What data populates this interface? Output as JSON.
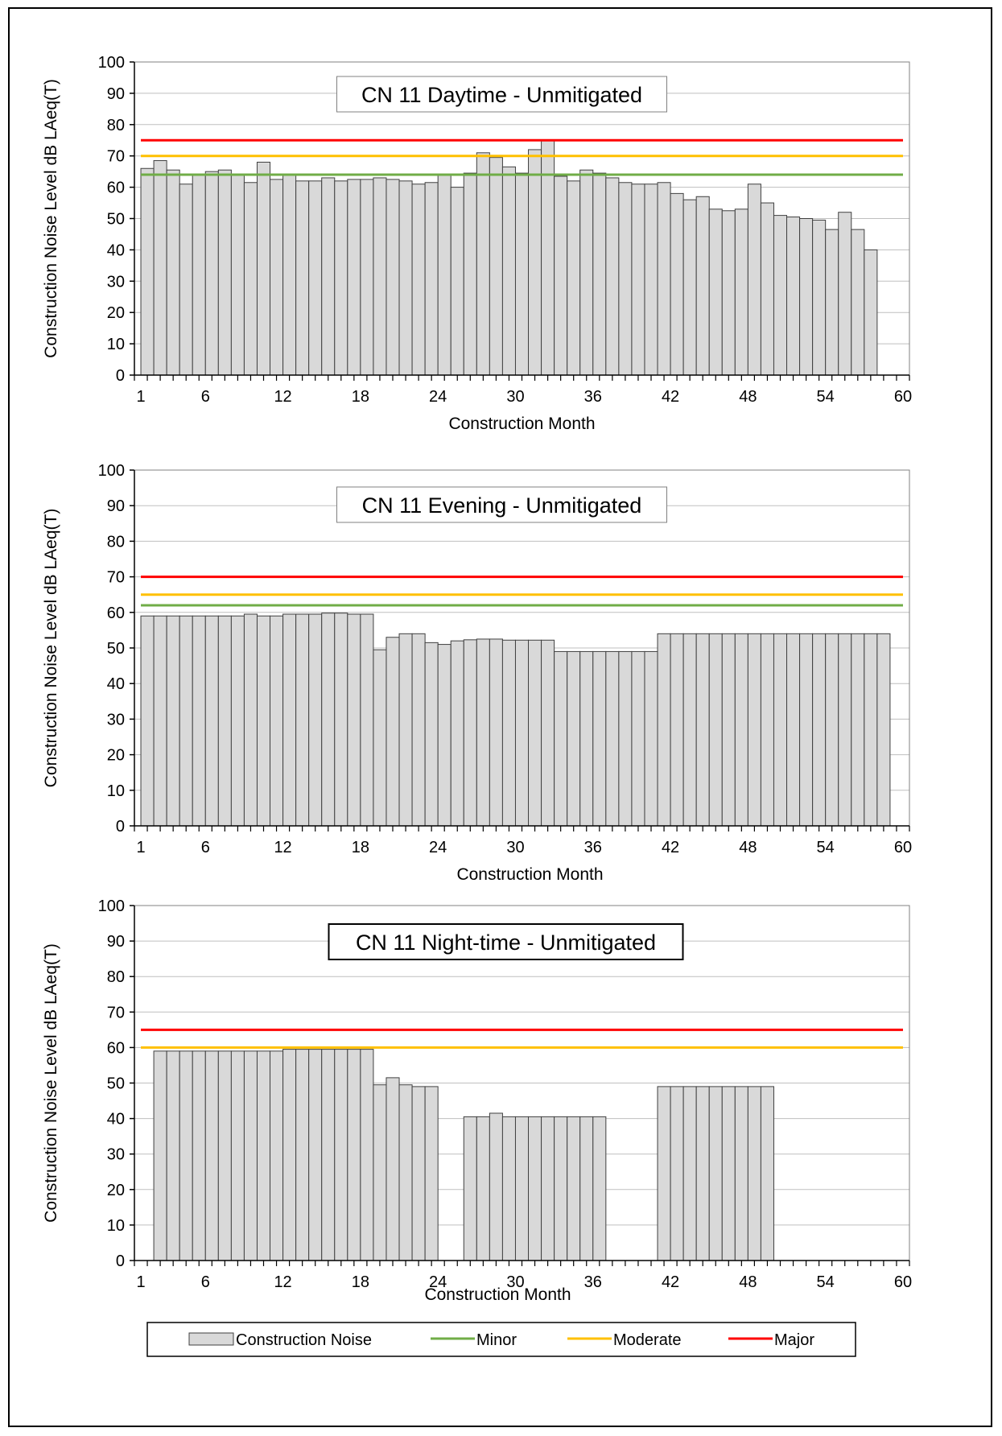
{
  "colors": {
    "bar_fill": "#d9d9d9",
    "bar_stroke": "#404040",
    "grid": "#bfbfbf",
    "minor": "#70ad47",
    "moderate": "#ffc000",
    "major": "#ff0000"
  },
  "legend": {
    "placement": "bottom",
    "items": [
      {
        "label": "Construction Noise",
        "kind": "bar"
      },
      {
        "label": "Minor",
        "kind": "line",
        "color": "#70ad47"
      },
      {
        "label": "Moderate",
        "kind": "line",
        "color": "#ffc000"
      },
      {
        "label": "Major",
        "kind": "line",
        "color": "#ff0000"
      }
    ]
  },
  "chart_data": [
    {
      "type": "bar",
      "title": "CN 11 Daytime - Unmitigated",
      "xlabel": "Construction Month",
      "ylabel": "Construction Noise Level dB LAeq(T)",
      "ylim": [
        0,
        100
      ],
      "yticks": [
        0,
        10,
        20,
        30,
        40,
        50,
        60,
        70,
        80,
        90,
        100
      ],
      "xlim": [
        1,
        60
      ],
      "xticks": [
        1,
        6,
        12,
        18,
        24,
        30,
        36,
        42,
        48,
        54,
        60
      ],
      "grid": true,
      "series": [
        {
          "name": "Construction Noise",
          "x": [
            1,
            2,
            3,
            4,
            5,
            6,
            7,
            8,
            9,
            10,
            11,
            12,
            13,
            14,
            15,
            16,
            17,
            18,
            19,
            20,
            21,
            22,
            23,
            24,
            25,
            26,
            27,
            28,
            29,
            30,
            31,
            32,
            33,
            34,
            35,
            36,
            37,
            38,
            39,
            40,
            41,
            42,
            43,
            44,
            45,
            46,
            47,
            48,
            49,
            50,
            51,
            52,
            53,
            54,
            55,
            56,
            57
          ],
          "values": [
            66,
            68.5,
            65.5,
            61,
            64,
            65,
            65.5,
            64,
            61.5,
            68,
            62.5,
            64,
            62,
            62,
            63,
            62,
            62.5,
            62.5,
            63,
            62.5,
            62,
            61,
            61.5,
            64,
            60,
            64.5,
            71,
            69.5,
            66.5,
            64.5,
            72,
            75,
            63.5,
            62,
            65.5,
            64.5,
            63,
            61.5,
            61,
            61,
            61.5,
            58,
            56,
            57,
            53,
            52.5,
            53,
            61,
            55,
            51,
            50.5,
            50,
            49.5,
            46.5,
            52,
            46.5,
            40
          ]
        }
      ],
      "thresholds": [
        {
          "name": "Minor",
          "value": 64
        },
        {
          "name": "Moderate",
          "value": 70
        },
        {
          "name": "Major",
          "value": 75
        }
      ]
    },
    {
      "type": "bar",
      "title": "CN 11 Evening - Unmitigated",
      "xlabel": "Construction Month",
      "ylabel": "Construction Noise Level dB LAeq(T)",
      "ylim": [
        0,
        100
      ],
      "yticks": [
        0,
        10,
        20,
        30,
        40,
        50,
        60,
        70,
        80,
        90,
        100
      ],
      "xlim": [
        1,
        60
      ],
      "xticks": [
        1,
        6,
        12,
        18,
        24,
        30,
        36,
        42,
        48,
        54,
        60
      ],
      "grid": true,
      "series": [
        {
          "name": "Construction Noise",
          "x": [
            1,
            2,
            3,
            4,
            5,
            6,
            7,
            8,
            9,
            10,
            11,
            12,
            13,
            14,
            15,
            16,
            17,
            18,
            19,
            20,
            21,
            22,
            23,
            24,
            25,
            26,
            27,
            28,
            29,
            30,
            31,
            32,
            33,
            34,
            35,
            36,
            37,
            38,
            39,
            40,
            41,
            42,
            43,
            44,
            45,
            46,
            47,
            48,
            49,
            50,
            51,
            52,
            53,
            54,
            55,
            56,
            57,
            58
          ],
          "values": [
            59,
            59,
            59,
            59,
            59,
            59,
            59,
            59,
            59.5,
            59,
            59,
            59.5,
            59.5,
            59.5,
            59.8,
            59.8,
            59.5,
            59.5,
            49.5,
            53,
            54,
            54,
            51.5,
            51,
            52,
            52.3,
            52.5,
            52.5,
            52.2,
            52.2,
            52.2,
            52.2,
            49,
            49,
            49,
            49,
            49,
            49,
            49,
            49,
            54,
            54,
            54,
            54,
            54,
            54,
            54,
            54,
            54,
            54,
            54,
            54,
            54,
            54,
            54,
            54,
            54,
            54
          ]
        }
      ],
      "thresholds": [
        {
          "name": "Minor",
          "value": 62
        },
        {
          "name": "Moderate",
          "value": 65
        },
        {
          "name": "Major",
          "value": 70
        }
      ]
    },
    {
      "type": "bar",
      "title": "CN 11 Night-time - Unmitigated",
      "xlabel": "Construction Month",
      "ylabel": "Construction Noise Level dB LAeq(T)",
      "ylim": [
        0,
        100
      ],
      "yticks": [
        0,
        10,
        20,
        30,
        40,
        50,
        60,
        70,
        80,
        90,
        100
      ],
      "xlim": [
        1,
        60
      ],
      "xticks": [
        1,
        6,
        12,
        18,
        24,
        30,
        36,
        42,
        48,
        54,
        60
      ],
      "grid": true,
      "series": [
        {
          "name": "Construction Noise",
          "x": [
            2,
            3,
            4,
            5,
            6,
            7,
            8,
            9,
            10,
            11,
            12,
            13,
            14,
            15,
            16,
            17,
            18,
            19,
            20,
            21,
            22,
            23,
            26,
            27,
            28,
            29,
            30,
            31,
            32,
            33,
            34,
            35,
            36,
            41,
            42,
            43,
            44,
            45,
            46,
            47,
            48,
            49
          ],
          "values": [
            59,
            59,
            59,
            59,
            59,
            59,
            59,
            59,
            59,
            59,
            59.5,
            59.5,
            59.5,
            59.5,
            59.5,
            59.5,
            59.5,
            49.5,
            51.5,
            49.5,
            49,
            49,
            40.5,
            40.5,
            41.5,
            40.5,
            40.5,
            40.5,
            40.5,
            40.5,
            40.5,
            40.5,
            40.5,
            49,
            49,
            49,
            49,
            49,
            49,
            49,
            49,
            49
          ]
        }
      ],
      "thresholds": [
        {
          "name": "Moderate",
          "value": 60
        },
        {
          "name": "Major",
          "value": 65
        }
      ]
    }
  ]
}
